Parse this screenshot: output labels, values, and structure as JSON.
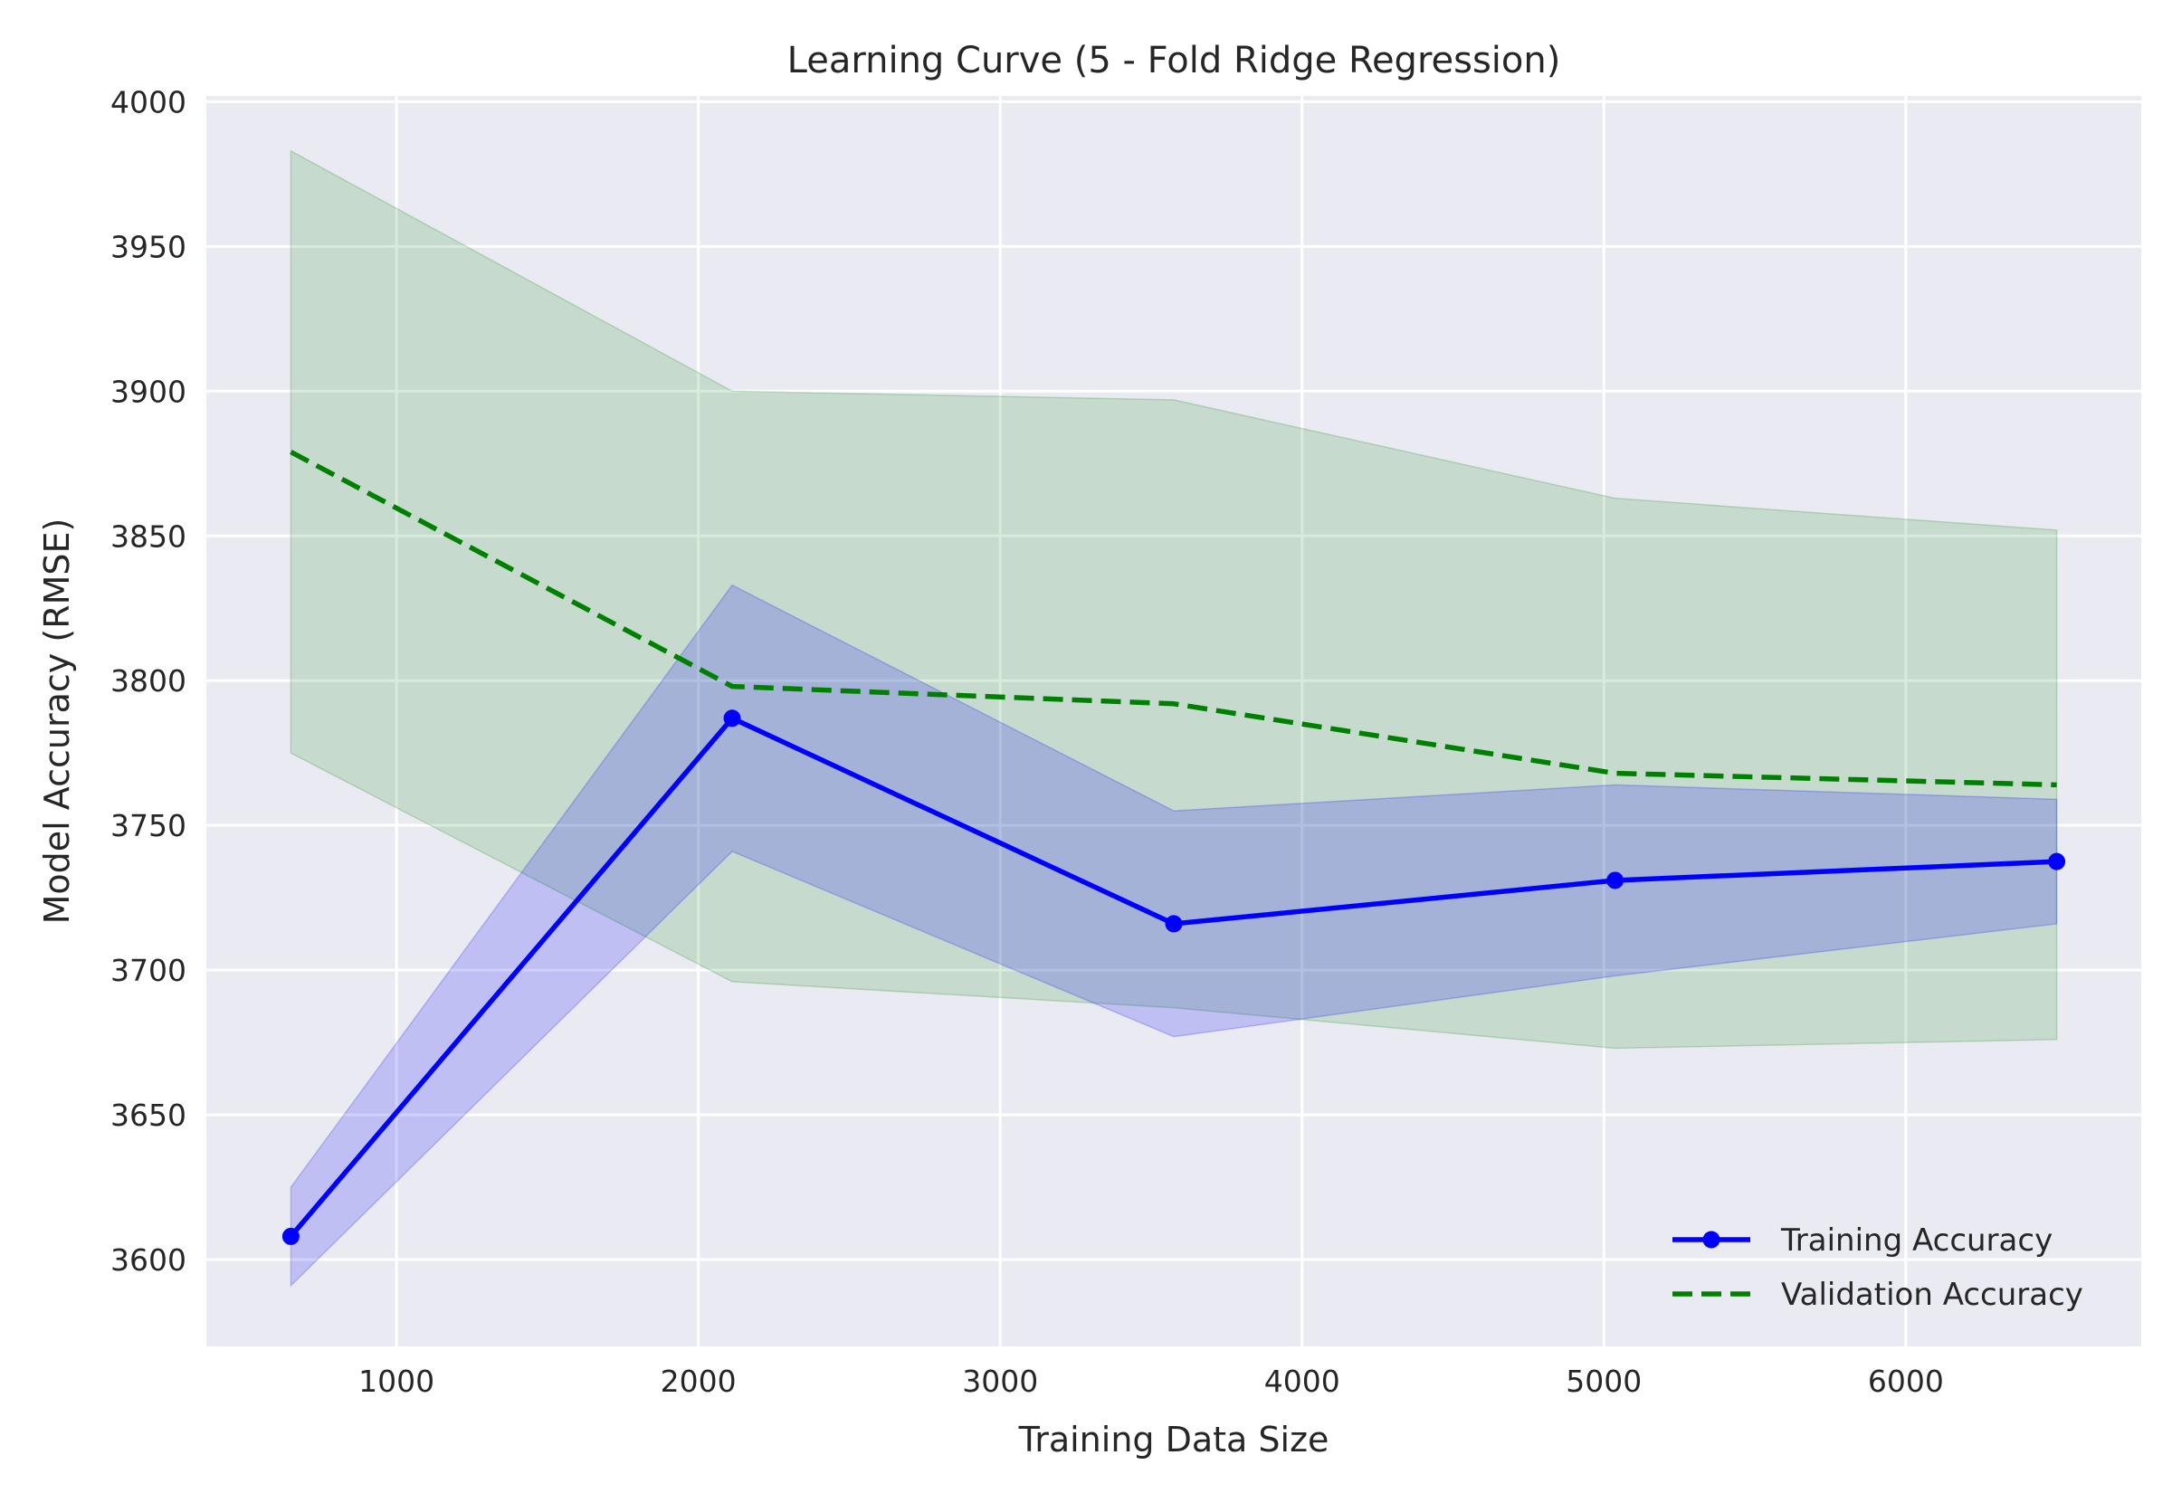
{
  "chart_data": {
    "type": "line",
    "title": "Learning Curve (5 - Fold Ridge Regression)",
    "xlabel": "Training Data Size",
    "ylabel": "Model Accuracy (RMSE)",
    "xlim": [
      370,
      6780
    ],
    "ylim": [
      3570,
      4002
    ],
    "xticks": [
      1000,
      2000,
      3000,
      4000,
      5000,
      6000
    ],
    "yticks": [
      3600,
      3650,
      3700,
      3750,
      3800,
      3850,
      3900,
      3950,
      4000
    ],
    "grid": true,
    "background": "#eaeaf2",
    "legend_position": "lower-right",
    "x": [
      650,
      2112,
      3575,
      5037,
      6500
    ],
    "series": [
      {
        "name": "Training Accuracy",
        "color": "#0000ff",
        "line_style": "solid",
        "marker": "circle",
        "values": [
          3608,
          3787,
          3716,
          3731,
          3737.5
        ],
        "band_lower": [
          3591,
          3741,
          3677,
          3698,
          3716
        ],
        "band_upper": [
          3625,
          3833,
          3755,
          3764,
          3759
        ],
        "band_color": "#0000ff"
      },
      {
        "name": "Validation Accuracy",
        "color": "#008000",
        "line_style": "dashed",
        "marker": "none",
        "values": [
          3879,
          3798,
          3792,
          3768,
          3764
        ],
        "band_lower": [
          3775,
          3696,
          3687,
          3673,
          3676
        ],
        "band_upper": [
          3983,
          3900,
          3897,
          3863,
          3852
        ],
        "band_color": "#008000"
      }
    ]
  }
}
